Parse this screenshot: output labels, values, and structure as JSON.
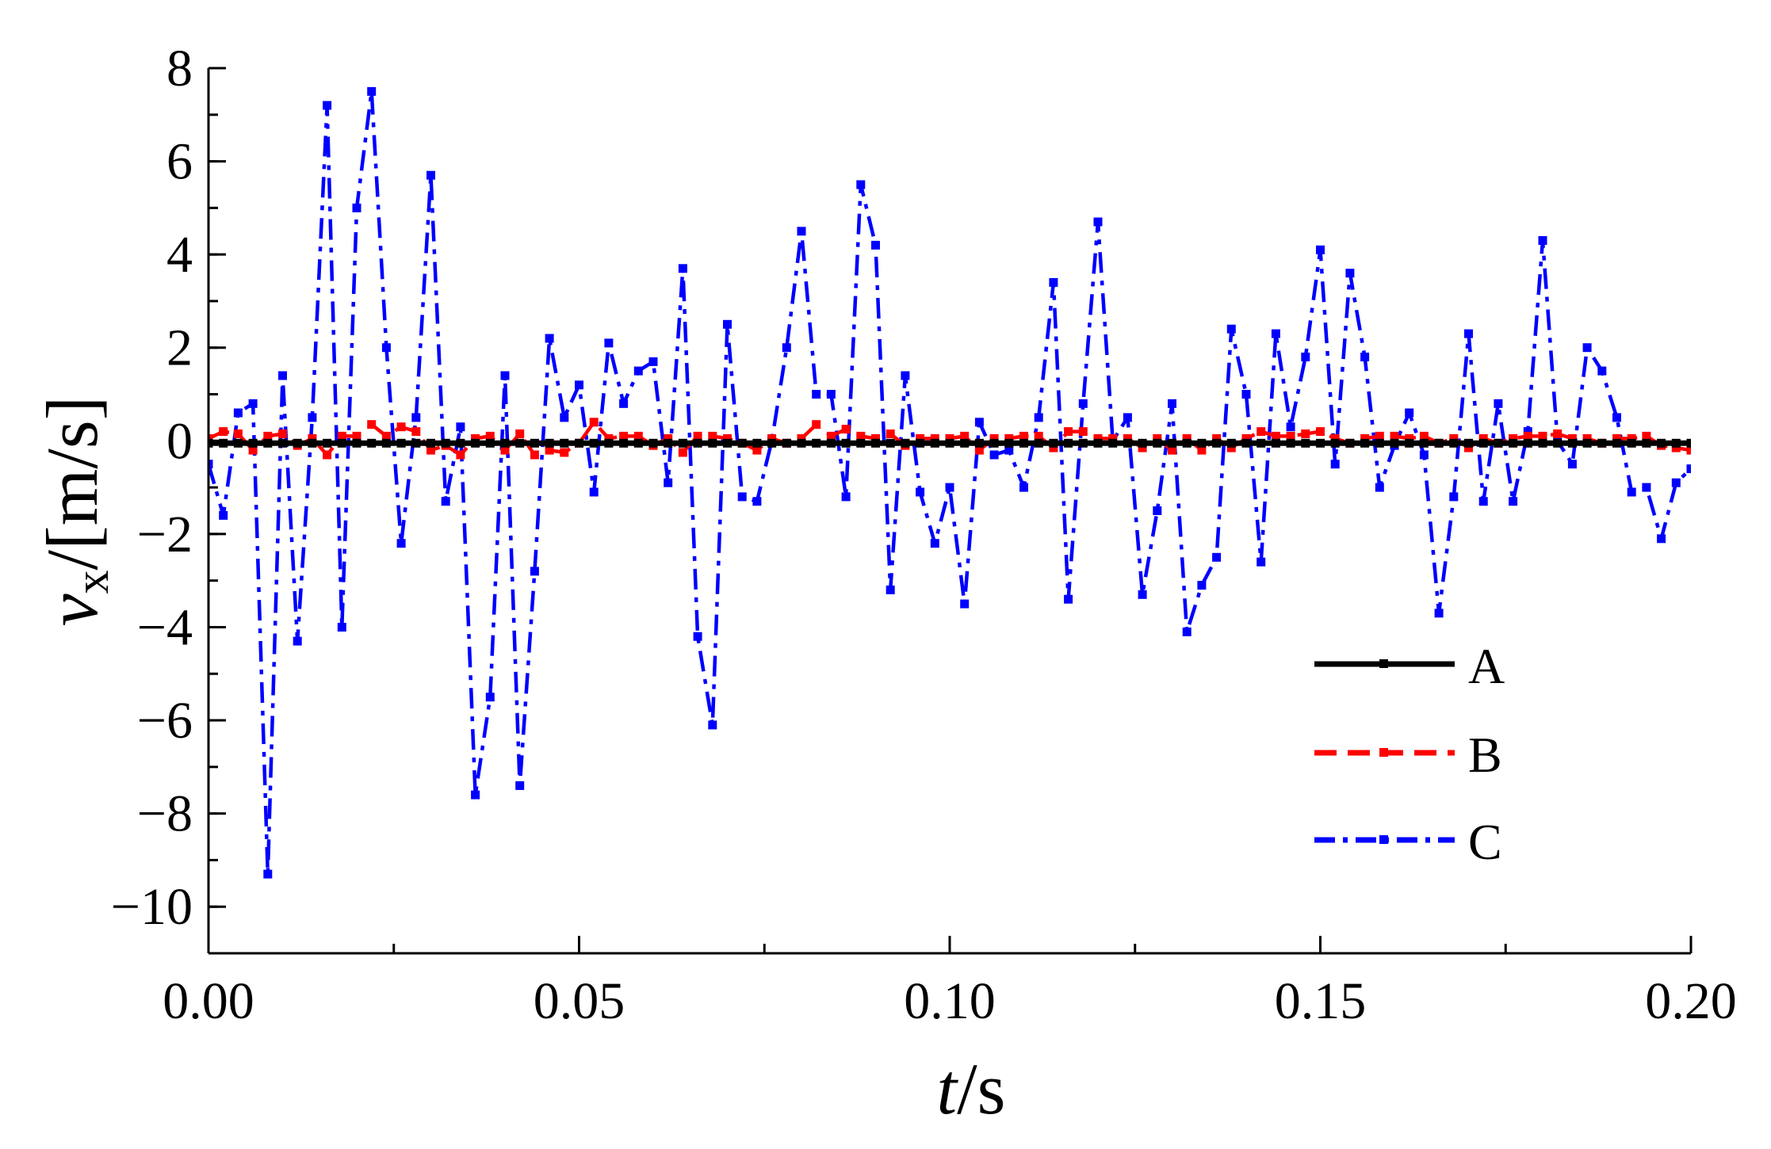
{
  "chart_data": {
    "type": "line",
    "title": "",
    "xlabel": {
      "italic": "t",
      "rest": "/s"
    },
    "ylabel": {
      "var": "v",
      "sub": "x",
      "unit": "/[m/s]"
    },
    "xlim": [
      0,
      0.2
    ],
    "ylim": [
      -11,
      8
    ],
    "x_ticks": [
      0,
      0.05,
      0.1,
      0.15,
      0.2
    ],
    "x_tick_labels": [
      "0.00",
      "0.05",
      "0.10",
      "0.15",
      "0.20"
    ],
    "x_minor_step": 0.025,
    "y_ticks": [
      -10,
      -8,
      -6,
      -4,
      -2,
      0,
      2,
      4,
      6,
      8
    ],
    "y_tick_labels": [
      "−10",
      "−8",
      "−6",
      "−4",
      "−2",
      "0",
      "2",
      "4",
      "6",
      "8"
    ],
    "y_minor_step": 1,
    "grid": false,
    "legend_position": "bottom-right",
    "series": [
      {
        "name": "A",
        "color": "#000000",
        "dash": "solid",
        "x": [
          0,
          0.002,
          0.004,
          0.006,
          0.008,
          0.01,
          0.012,
          0.014,
          0.016,
          0.018,
          0.02,
          0.022,
          0.024,
          0.026,
          0.028,
          0.03,
          0.032,
          0.034,
          0.036,
          0.038,
          0.04,
          0.042,
          0.044,
          0.046,
          0.048,
          0.05,
          0.052,
          0.054,
          0.056,
          0.058,
          0.06,
          0.062,
          0.064,
          0.066,
          0.068,
          0.07,
          0.072,
          0.074,
          0.076,
          0.078,
          0.08,
          0.082,
          0.084,
          0.086,
          0.088,
          0.09,
          0.092,
          0.094,
          0.096,
          0.098,
          0.1,
          0.102,
          0.104,
          0.106,
          0.108,
          0.11,
          0.112,
          0.114,
          0.116,
          0.118,
          0.12,
          0.122,
          0.124,
          0.126,
          0.128,
          0.13,
          0.132,
          0.134,
          0.136,
          0.138,
          0.14,
          0.142,
          0.144,
          0.146,
          0.148,
          0.15,
          0.152,
          0.154,
          0.156,
          0.158,
          0.16,
          0.162,
          0.164,
          0.166,
          0.168,
          0.17,
          0.172,
          0.174,
          0.176,
          0.178,
          0.18,
          0.182,
          0.184,
          0.186,
          0.188,
          0.19,
          0.192,
          0.194,
          0.196,
          0.198,
          0.2
        ],
        "y": [
          -0.05,
          -0.05,
          -0.05,
          -0.05,
          -0.05,
          -0.05,
          -0.05,
          -0.05,
          -0.05,
          -0.05,
          -0.05,
          -0.05,
          -0.05,
          -0.05,
          -0.05,
          -0.05,
          -0.05,
          -0.05,
          -0.05,
          -0.05,
          -0.05,
          -0.05,
          -0.05,
          -0.05,
          -0.05,
          -0.05,
          -0.05,
          -0.05,
          -0.05,
          -0.05,
          -0.05,
          -0.05,
          -0.05,
          -0.05,
          -0.05,
          -0.05,
          -0.05,
          -0.05,
          -0.05,
          -0.05,
          -0.05,
          -0.05,
          -0.05,
          -0.05,
          -0.05,
          -0.05,
          -0.05,
          -0.05,
          -0.05,
          -0.05,
          -0.05,
          -0.05,
          -0.05,
          -0.05,
          -0.05,
          -0.05,
          -0.05,
          -0.05,
          -0.05,
          -0.05,
          -0.05,
          -0.05,
          -0.05,
          -0.05,
          -0.05,
          -0.05,
          -0.05,
          -0.05,
          -0.05,
          -0.05,
          -0.05,
          -0.05,
          -0.05,
          -0.05,
          -0.05,
          -0.05,
          -0.05,
          -0.05,
          -0.05,
          -0.05,
          -0.05,
          -0.05,
          -0.05,
          -0.05,
          -0.05,
          -0.05,
          -0.05,
          -0.05,
          -0.05,
          -0.05,
          -0.05,
          -0.05,
          -0.05,
          -0.05,
          -0.05,
          -0.05,
          -0.05,
          -0.05,
          -0.05,
          -0.05,
          -0.05
        ]
      },
      {
        "name": "B",
        "color": "#ff0000",
        "dash": "dash",
        "x": [
          0,
          0.002,
          0.004,
          0.006,
          0.008,
          0.01,
          0.012,
          0.014,
          0.016,
          0.018,
          0.02,
          0.022,
          0.024,
          0.026,
          0.028,
          0.03,
          0.032,
          0.034,
          0.036,
          0.038,
          0.04,
          0.042,
          0.044,
          0.046,
          0.048,
          0.05,
          0.052,
          0.054,
          0.056,
          0.058,
          0.06,
          0.062,
          0.064,
          0.066,
          0.068,
          0.07,
          0.072,
          0.074,
          0.076,
          0.078,
          0.08,
          0.082,
          0.084,
          0.086,
          0.088,
          0.09,
          0.092,
          0.094,
          0.096,
          0.098,
          0.1,
          0.102,
          0.104,
          0.106,
          0.108,
          0.11,
          0.112,
          0.114,
          0.116,
          0.118,
          0.12,
          0.122,
          0.124,
          0.126,
          0.128,
          0.13,
          0.132,
          0.134,
          0.136,
          0.138,
          0.14,
          0.142,
          0.144,
          0.146,
          0.148,
          0.15,
          0.152,
          0.154,
          0.156,
          0.158,
          0.16,
          0.162,
          0.164,
          0.166,
          0.168,
          0.17,
          0.172,
          0.174,
          0.176,
          0.178,
          0.18,
          0.182,
          0.184,
          0.186,
          0.188,
          0.19,
          0.192,
          0.194,
          0.196,
          0.198,
          0.2
        ],
        "y": [
          0.05,
          0.2,
          0.15,
          -0.2,
          0.1,
          0.15,
          -0.1,
          0.05,
          -0.3,
          0.1,
          0.1,
          0.35,
          0.1,
          0.3,
          0.2,
          -0.2,
          -0.1,
          -0.3,
          0.05,
          0.1,
          -0.2,
          0.15,
          -0.3,
          -0.2,
          -0.25,
          -0.05,
          0.4,
          0.05,
          0.1,
          0.1,
          -0.1,
          0.05,
          -0.25,
          0.1,
          0.1,
          0.05,
          -0.05,
          -0.2,
          0.05,
          -0.05,
          0.05,
          0.35,
          0.1,
          0.25,
          0.1,
          0.05,
          0.15,
          -0.1,
          0.05,
          0.05,
          0.05,
          0.1,
          -0.2,
          0.05,
          0.05,
          0.1,
          0.1,
          -0.15,
          0.2,
          0.2,
          0.05,
          0.05,
          0.05,
          -0.15,
          0.05,
          -0.2,
          0.05,
          -0.2,
          0.05,
          -0.15,
          0.05,
          0.2,
          0.1,
          0.1,
          0.15,
          0.2,
          0.05,
          -0.05,
          0.05,
          0.1,
          0.1,
          0.05,
          0.1,
          -0.05,
          0.05,
          -0.15,
          0.05,
          -0.05,
          0.05,
          0.1,
          0.1,
          0.15,
          0.05,
          0.05,
          -0.05,
          0.05,
          0.05,
          0.1,
          -0.1,
          -0.15,
          -0.2
        ]
      },
      {
        "name": "C",
        "color": "#0000ff",
        "dash": "dashdot",
        "x": [
          0,
          0.002,
          0.004,
          0.006,
          0.008,
          0.01,
          0.012,
          0.014,
          0.016,
          0.018,
          0.02,
          0.022,
          0.024,
          0.026,
          0.028,
          0.03,
          0.032,
          0.034,
          0.036,
          0.038,
          0.04,
          0.042,
          0.044,
          0.046,
          0.048,
          0.05,
          0.052,
          0.054,
          0.056,
          0.058,
          0.06,
          0.062,
          0.064,
          0.066,
          0.068,
          0.07,
          0.072,
          0.074,
          0.076,
          0.078,
          0.08,
          0.082,
          0.084,
          0.086,
          0.088,
          0.09,
          0.092,
          0.094,
          0.096,
          0.098,
          0.1,
          0.102,
          0.104,
          0.106,
          0.108,
          0.11,
          0.112,
          0.114,
          0.116,
          0.118,
          0.12,
          0.122,
          0.124,
          0.126,
          0.128,
          0.13,
          0.132,
          0.134,
          0.136,
          0.138,
          0.14,
          0.142,
          0.144,
          0.146,
          0.148,
          0.15,
          0.152,
          0.154,
          0.156,
          0.158,
          0.16,
          0.162,
          0.164,
          0.166,
          0.168,
          0.17,
          0.172,
          0.174,
          0.176,
          0.178,
          0.18,
          0.182,
          0.184,
          0.186,
          0.188,
          0.19,
          0.192,
          0.194,
          0.196,
          0.198,
          0.2
        ],
        "y": [
          -0.5,
          -1.6,
          0.6,
          0.8,
          -9.3,
          1.4,
          -4.3,
          0.5,
          7.2,
          -4.0,
          5.0,
          7.5,
          2.0,
          -2.2,
          0.5,
          5.7,
          -1.3,
          0.3,
          -7.6,
          -5.5,
          1.4,
          -7.4,
          -2.8,
          2.2,
          0.5,
          1.2,
          -1.1,
          2.1,
          0.8,
          1.5,
          1.7,
          -0.9,
          3.7,
          -4.2,
          -6.1,
          2.5,
          -1.2,
          -1.3,
          0.0,
          2.0,
          4.5,
          1.0,
          1.0,
          -1.2,
          5.5,
          4.2,
          -3.2,
          1.4,
          -1.1,
          -2.2,
          -1.0,
          -3.5,
          0.4,
          -0.3,
          -0.2,
          -1.0,
          0.5,
          3.4,
          -3.4,
          0.8,
          4.7,
          0.0,
          0.5,
          -3.3,
          -1.5,
          0.8,
          -4.1,
          -3.1,
          -2.5,
          2.4,
          1.0,
          -2.6,
          2.3,
          0.3,
          1.8,
          4.1,
          -0.5,
          3.6,
          1.8,
          -1.0,
          -0.1,
          0.6,
          -0.3,
          -3.7,
          -1.2,
          2.3,
          -1.3,
          0.8,
          -1.3,
          0.2,
          4.3,
          0.0,
          -0.5,
          2.0,
          1.5,
          0.5,
          -1.1,
          -1.0,
          -2.1,
          -0.9,
          -0.6
        ]
      }
    ]
  }
}
